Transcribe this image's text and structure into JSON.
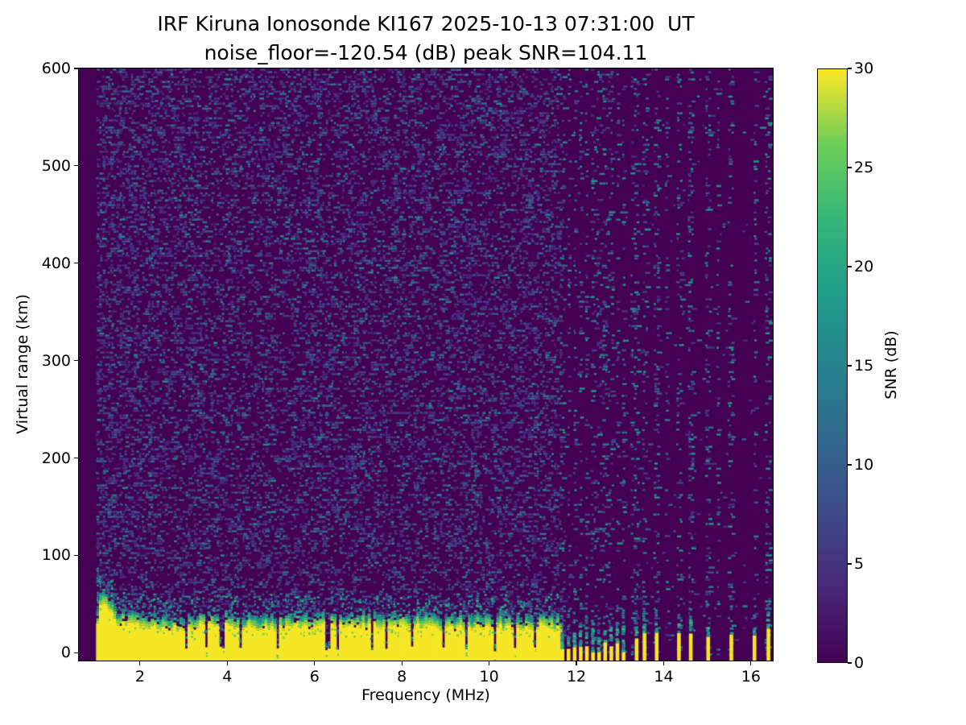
{
  "chart_data": {
    "type": "heatmap",
    "title": "IRF Kiruna Ionosonde KI167 2025-10-13 07:31:00  UT",
    "subtitle": "noise_floor=-120.54 (dB) peak SNR=104.11",
    "station": "IRF Kiruna Ionosonde KI167",
    "timestamp_ut": "2025-10-13 07:31:00 UT",
    "noise_floor_db": -120.54,
    "peak_snr_db": 104.11,
    "xlabel": "Frequency (MHz)",
    "ylabel": "Virtual range (km)",
    "xlim": [
      0.6,
      16.5
    ],
    "ylim": [
      -8,
      600
    ],
    "xticks": [
      2,
      4,
      6,
      8,
      10,
      12,
      14,
      16
    ],
    "yticks": [
      0,
      100,
      200,
      300,
      400,
      500,
      600
    ],
    "grid": false,
    "colormap": "viridis",
    "background_value_color": "#440154",
    "band_color": "#f5e626",
    "transition_palette": [
      "#c8e020",
      "#90d743",
      "#5ec962",
      "#28ae80",
      "#21918c",
      "#2c728e",
      "#355f8d"
    ],
    "colorbar": {
      "label": "SNR (dB)",
      "range": [
        0,
        30
      ],
      "ticks": [
        0,
        5,
        10,
        15,
        20,
        25,
        30
      ],
      "stops": [
        [
          0,
          "#440154"
        ],
        [
          0.125,
          "#482878"
        ],
        [
          0.25,
          "#3e4a89"
        ],
        [
          0.375,
          "#31688e"
        ],
        [
          0.5,
          "#26828e"
        ],
        [
          0.625,
          "#1f9e89"
        ],
        [
          0.75,
          "#35b779"
        ],
        [
          0.875,
          "#6ece58"
        ],
        [
          1,
          "#fde725"
        ]
      ]
    },
    "data_start_mhz": 1.0,
    "ground_clutter_band": {
      "description": "saturated near-range echo band, SNR ~30 dB, 0-50 km",
      "start_mhz": 1.0,
      "end_mhz": 11.66,
      "top_profile_km": [
        [
          1.0,
          24
        ],
        [
          1.08,
          46
        ],
        [
          1.15,
          52
        ],
        [
          1.3,
          42
        ],
        [
          1.5,
          31
        ],
        [
          2.0,
          28
        ],
        [
          2.5,
          25
        ],
        [
          3.0,
          26
        ],
        [
          3.6,
          29
        ],
        [
          4.2,
          27
        ],
        [
          5.0,
          24
        ],
        [
          5.6,
          27
        ],
        [
          6.2,
          26
        ],
        [
          7.0,
          28
        ],
        [
          7.6,
          25
        ],
        [
          8.2,
          27
        ],
        [
          9.0,
          24
        ],
        [
          9.6,
          26
        ],
        [
          10.2,
          27
        ],
        [
          10.8,
          25
        ],
        [
          11.3,
          27
        ],
        [
          11.66,
          24
        ]
      ],
      "notch_freqs_mhz": [
        3.08,
        3.52,
        3.88,
        4.32,
        5.18,
        6.3,
        6.52,
        7.3,
        7.62,
        8.23,
        8.93,
        9.47,
        10.12,
        10.58,
        11.05
      ]
    },
    "dense_stripe_freqs_mhz": [
      11.68,
      11.82,
      11.96,
      12.1,
      12.24,
      12.38,
      12.52,
      12.66,
      12.8,
      12.94,
      13.08
    ],
    "sparse_stripe_freqs_mhz": [
      13.38,
      13.56,
      13.84,
      14.35,
      14.62,
      15.02,
      15.55,
      16.08,
      16.4
    ],
    "upper_noise_extra_cols_mhz": [
      13.3,
      14.05,
      15.25
    ],
    "noise": {
      "palette": [
        "#472a7a",
        "#46327e",
        "#423f85",
        "#3d4e8a",
        "#365c8d",
        "#31688e",
        "#2a788e",
        "#23898e"
      ],
      "weights": [
        0.22,
        0.2,
        0.18,
        0.14,
        0.11,
        0.08,
        0.045,
        0.025
      ],
      "density_main": 0.33,
      "density_low_freq": 0.38,
      "stripe_col_density": 0.2,
      "clean_region_density": 0.013
    }
  }
}
